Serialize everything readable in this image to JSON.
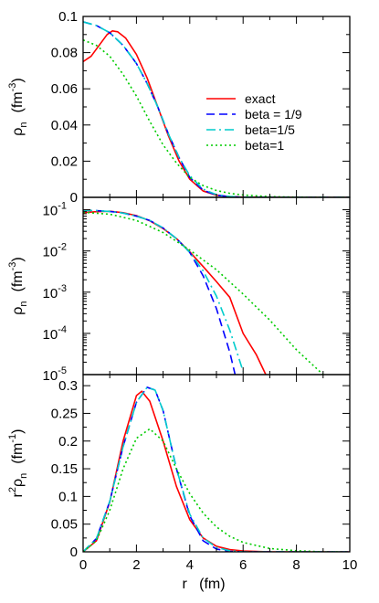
{
  "chart_data": [
    {
      "type": "line",
      "ylabel_main": "ρ",
      "ylabel_sub": "n",
      "ylabel_unit": "(fm",
      "ylabel_unit_sup": "-3",
      "ylabel_unit_close": ")",
      "xlim": [
        0,
        10
      ],
      "ylim": [
        0,
        0.1
      ],
      "yscale": "linear",
      "ytick_values": [
        0,
        0.02,
        0.04,
        0.06,
        0.08,
        0.1
      ],
      "ytick_labels": [
        "0",
        "0.02",
        "0.04",
        "0.06",
        "0.08",
        "0.1"
      ],
      "legend": {
        "placement": "right-center"
      },
      "series": [
        {
          "name": "exact",
          "color": "#ff0000",
          "dash": "solid",
          "x": [
            0,
            0.3,
            0.6,
            0.9,
            1.1,
            1.3,
            1.6,
            2.0,
            2.4,
            2.8,
            3.2,
            3.6,
            4.0,
            4.5,
            5.0,
            5.5,
            6.0,
            7.0,
            10
          ],
          "y": [
            0.075,
            0.078,
            0.084,
            0.09,
            0.092,
            0.0915,
            0.088,
            0.079,
            0.066,
            0.05,
            0.034,
            0.02,
            0.01,
            0.0035,
            0.0012,
            0.0004,
            0.0001,
            0,
            0
          ]
        },
        {
          "name": "beta = 1/9",
          "color": "#0000ff",
          "dash": "dashed",
          "x": [
            0,
            0.5,
            1.0,
            1.5,
            2.0,
            2.4,
            2.8,
            3.2,
            3.6,
            4.0,
            4.5,
            5.0,
            5.5,
            6.0,
            7.0,
            10
          ],
          "y": [
            0.097,
            0.095,
            0.091,
            0.084,
            0.074,
            0.063,
            0.05,
            0.035,
            0.022,
            0.011,
            0.004,
            0.0012,
            0.0003,
            0.0001,
            0,
            0
          ]
        },
        {
          "name": "beta=1/5",
          "color": "#00cccc",
          "dash": "dashdot",
          "x": [
            0,
            0.5,
            1.0,
            1.5,
            2.0,
            2.4,
            2.8,
            3.2,
            3.6,
            4.0,
            4.5,
            5.0,
            5.5,
            6.0,
            7.0,
            10
          ],
          "y": [
            0.097,
            0.095,
            0.091,
            0.084,
            0.074,
            0.063,
            0.05,
            0.035,
            0.022,
            0.012,
            0.0045,
            0.0015,
            0.0005,
            0.0001,
            0,
            0
          ]
        },
        {
          "name": "beta=1",
          "color": "#00cc00",
          "dash": "dotted",
          "x": [
            0,
            0.5,
            1.0,
            1.5,
            2.0,
            2.5,
            3.0,
            3.5,
            4.0,
            4.5,
            5.0,
            5.5,
            6.0,
            7.0,
            8.0,
            9.0,
            10
          ],
          "y": [
            0.087,
            0.084,
            0.078,
            0.068,
            0.056,
            0.042,
            0.029,
            0.019,
            0.011,
            0.0065,
            0.0038,
            0.0022,
            0.0013,
            0.0004,
            0.0001,
            0,
            0
          ]
        }
      ]
    },
    {
      "type": "line",
      "ylabel_main": "ρ",
      "ylabel_sub": "n",
      "ylabel_unit": "(fm",
      "ylabel_unit_sup": "-3",
      "ylabel_unit_close": ")",
      "xlim": [
        0,
        10
      ],
      "ylim": [
        1e-05,
        0.2
      ],
      "yscale": "log",
      "ytick_values": [
        0.1,
        0.01,
        0.001,
        0.0001,
        1e-05
      ],
      "ytick_base": "10",
      "ytick_exps": [
        "-1",
        "-2",
        "-3",
        "-4",
        "-5"
      ],
      "series": [
        {
          "name": "exact",
          "color": "#ff0000",
          "dash": "solid",
          "x": [
            0,
            0.5,
            1.0,
            1.5,
            2.0,
            2.5,
            3.0,
            3.5,
            4.0,
            4.5,
            5.0,
            5.5,
            6.0,
            6.5,
            6.85
          ],
          "y": [
            0.085,
            0.09,
            0.092,
            0.085,
            0.072,
            0.054,
            0.035,
            0.02,
            0.0095,
            0.0042,
            0.0018,
            0.00075,
            0.0001,
            3e-05,
            1e-05
          ]
        },
        {
          "name": "beta = 1/9",
          "color": "#0000ff",
          "dash": "dashed",
          "x": [
            0,
            0.5,
            1.0,
            1.5,
            2.0,
            2.5,
            3.0,
            3.5,
            4.0,
            4.5,
            5.0,
            5.5,
            5.7
          ],
          "y": [
            0.097,
            0.095,
            0.091,
            0.083,
            0.07,
            0.055,
            0.036,
            0.02,
            0.0092,
            0.0025,
            0.0004,
            3.5e-05,
            1e-05
          ]
        },
        {
          "name": "beta=1/5",
          "color": "#00cccc",
          "dash": "dashdot",
          "x": [
            0,
            0.5,
            1.0,
            1.5,
            2.0,
            2.5,
            3.0,
            3.5,
            4.0,
            4.5,
            5.0,
            5.5,
            6.0
          ],
          "y": [
            0.097,
            0.095,
            0.091,
            0.083,
            0.07,
            0.055,
            0.036,
            0.02,
            0.0092,
            0.0033,
            0.0008,
            0.00012,
            1.2e-05
          ]
        },
        {
          "name": "beta=1",
          "color": "#00cc00",
          "dash": "dotted",
          "x": [
            0,
            1.0,
            2.0,
            3.0,
            4.0,
            5.0,
            6.0,
            7.0,
            8.0,
            9.0
          ],
          "y": [
            0.087,
            0.078,
            0.055,
            0.028,
            0.0105,
            0.0035,
            0.0009,
            0.00021,
            4e-05,
            1e-05
          ]
        }
      ]
    },
    {
      "type": "line",
      "ylabel_pre": "r",
      "ylabel_pre_sup": "2",
      "ylabel_main": "ρ",
      "ylabel_sub": "n",
      "ylabel_unit": "(fm",
      "ylabel_unit_sup": "-1",
      "ylabel_unit_close": ")",
      "xlabel": "r   (fm)",
      "xlim": [
        0,
        10
      ],
      "ylim": [
        0,
        0.32
      ],
      "yscale": "linear",
      "ytick_values": [
        0,
        0.05,
        0.1,
        0.15,
        0.2,
        0.25,
        0.3
      ],
      "ytick_labels": [
        "0",
        "0.05",
        "0.1",
        "0.15",
        "0.2",
        "0.25",
        "0.3"
      ],
      "xtick_values": [
        0,
        2,
        4,
        6,
        8,
        10
      ],
      "xtick_labels": [
        "0",
        "2",
        "4",
        "6",
        "8",
        "10"
      ],
      "series": [
        {
          "name": "exact",
          "color": "#ff0000",
          "dash": "solid",
          "x": [
            0,
            0.5,
            1.0,
            1.5,
            2.0,
            2.2,
            2.5,
            3.0,
            3.5,
            4.0,
            4.5,
            5.0,
            5.5,
            6.0,
            7.0,
            10
          ],
          "y": [
            0,
            0.02,
            0.09,
            0.2,
            0.282,
            0.29,
            0.272,
            0.2,
            0.118,
            0.058,
            0.025,
            0.01,
            0.004,
            0.0015,
            0,
            0
          ]
        },
        {
          "name": "beta = 1/9",
          "color": "#0000ff",
          "dash": "dashed",
          "x": [
            0,
            0.5,
            1.0,
            1.5,
            2.0,
            2.4,
            2.7,
            3.0,
            3.5,
            4.0,
            4.5,
            5.0,
            5.5,
            6.0,
            10
          ],
          "y": [
            0,
            0.024,
            0.091,
            0.19,
            0.27,
            0.297,
            0.292,
            0.255,
            0.15,
            0.065,
            0.02,
            0.005,
            0.001,
            0,
            0
          ]
        },
        {
          "name": "beta=1/5",
          "color": "#00cccc",
          "dash": "dashdot",
          "x": [
            0,
            0.5,
            1.0,
            1.5,
            2.0,
            2.4,
            2.7,
            3.0,
            3.5,
            4.0,
            4.5,
            5.0,
            5.5,
            6.0,
            10
          ],
          "y": [
            0,
            0.024,
            0.091,
            0.19,
            0.27,
            0.297,
            0.292,
            0.255,
            0.15,
            0.068,
            0.025,
            0.008,
            0.002,
            0,
            0
          ]
        },
        {
          "name": "beta=1",
          "color": "#00cc00",
          "dash": "dotted",
          "x": [
            0,
            0.5,
            1.0,
            1.5,
            2.0,
            2.5,
            3.0,
            3.5,
            4.0,
            4.5,
            5.0,
            5.5,
            6.0,
            7.0,
            8.0,
            9.0,
            10
          ],
          "y": [
            0,
            0.02,
            0.075,
            0.15,
            0.205,
            0.222,
            0.2,
            0.15,
            0.105,
            0.07,
            0.045,
            0.028,
            0.017,
            0.006,
            0.002,
            0,
            0
          ]
        }
      ]
    }
  ]
}
